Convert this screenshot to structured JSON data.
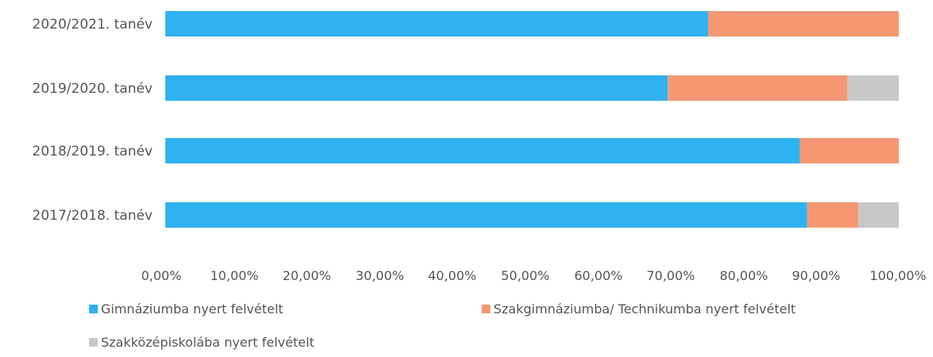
{
  "chart_data": {
    "type": "bar",
    "orientation": "horizontal",
    "stacked": true,
    "categories": [
      "2020/2021. tanév",
      "2019/2020. tanév",
      "2018/2019. tanév",
      "2017/2018. tanév"
    ],
    "series": [
      {
        "name": "Gimnáziumba nyert felvételt",
        "color": "#2fb2f0",
        "values": [
          74.0,
          68.5,
          86.5,
          87.5
        ]
      },
      {
        "name": "Szakgimnáziumba/ Technikumba nyert felvételt",
        "color": "#f39872",
        "values": [
          26.0,
          24.5,
          13.5,
          7.0
        ]
      },
      {
        "name": "Szakközépiskolába nyert felvételt",
        "color": "#c8c8c8",
        "values": [
          0.0,
          7.0,
          0.0,
          5.5
        ]
      }
    ],
    "xticks": [
      "0,00%",
      "10,00%",
      "20,00%",
      "30,00%",
      "40,00%",
      "50,00%",
      "60,00%",
      "70,00%",
      "80,00%",
      "90,00%",
      "100,00%"
    ],
    "xlim": [
      0,
      100
    ],
    "grid": false,
    "legend_position": "bottom"
  }
}
